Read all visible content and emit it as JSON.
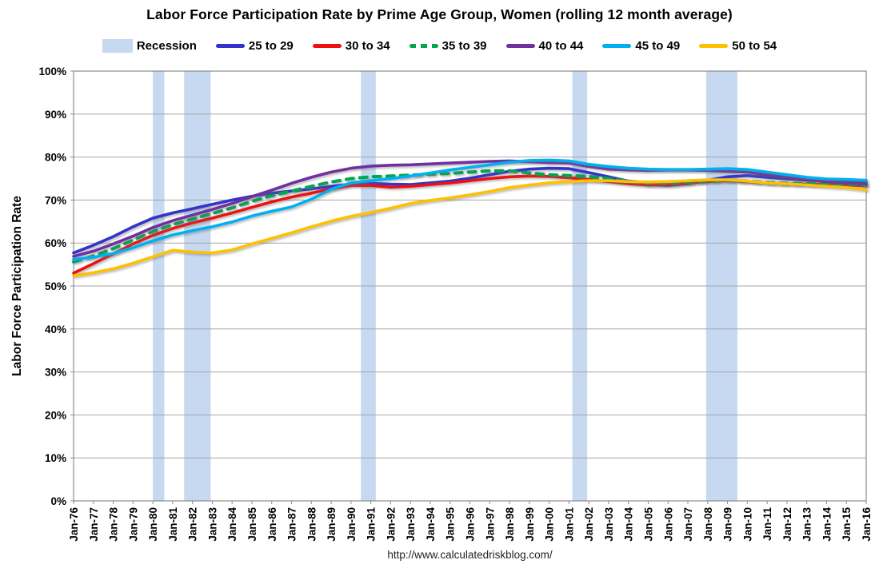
{
  "footer": {
    "url": "http://www.calculatedriskblog.com/"
  },
  "chart_data": {
    "type": "line",
    "title": "Labor Force Participation Rate by Prime Age Group, Women (rolling 12 month average)",
    "xlabel": "",
    "ylabel": "Labor Force Participation Rate",
    "ylim": [
      0,
      100
    ],
    "grid": "horizontal",
    "legend_position": "top",
    "y_ticks": [
      "0%",
      "10%",
      "20%",
      "30%",
      "40%",
      "50%",
      "60%",
      "70%",
      "80%",
      "90%",
      "100%"
    ],
    "x_start": 1976,
    "x_step": 1,
    "x_ticks": [
      "Jan-76",
      "Jan-77",
      "Jan-78",
      "Jan-79",
      "Jan-80",
      "Jan-81",
      "Jan-82",
      "Jan-83",
      "Jan-84",
      "Jan-85",
      "Jan-86",
      "Jan-87",
      "Jan-88",
      "Jan-89",
      "Jan-90",
      "Jan-91",
      "Jan-92",
      "Jan-93",
      "Jan-94",
      "Jan-95",
      "Jan-96",
      "Jan-97",
      "Jan-98",
      "Jan-99",
      "Jan-00",
      "Jan-01",
      "Jan-02",
      "Jan-03",
      "Jan-04",
      "Jan-05",
      "Jan-06",
      "Jan-07",
      "Jan-08",
      "Jan-09",
      "Jan-10",
      "Jan-11",
      "Jan-12",
      "Jan-13",
      "Jan-14",
      "Jan-15",
      "Jan-16"
    ],
    "recession": {
      "label": "Recession",
      "color": "#c6d9f1",
      "bands": [
        [
          1980.0,
          1980.58
        ],
        [
          1981.58,
          1982.92
        ],
        [
          1990.5,
          1991.25
        ],
        [
          2001.17,
          2001.92
        ],
        [
          2007.92,
          2009.5
        ]
      ]
    },
    "series": [
      {
        "name": "25 to 29",
        "color": "#3333cc",
        "dash": null,
        "values": [
          57.7,
          59.5,
          61.5,
          63.8,
          65.8,
          67.0,
          68.0,
          69.0,
          70.0,
          70.9,
          71.6,
          72.1,
          72.6,
          73.2,
          73.7,
          73.9,
          73.7,
          73.6,
          74.0,
          74.4,
          75.1,
          75.9,
          76.7,
          77.2,
          77.4,
          77.3,
          76.4,
          75.4,
          74.4,
          73.6,
          73.4,
          73.8,
          74.6,
          75.4,
          75.7,
          75.3,
          74.9,
          74.6,
          74.4,
          74.3,
          74.1
        ]
      },
      {
        "name": "30 to 34",
        "color": "#ee1111",
        "dash": null,
        "values": [
          53.0,
          55.2,
          57.5,
          59.8,
          61.8,
          63.4,
          64.7,
          65.8,
          67.0,
          68.3,
          69.6,
          70.7,
          71.6,
          72.6,
          73.4,
          73.4,
          73.0,
          73.2,
          73.6,
          74.0,
          74.5,
          75.0,
          75.4,
          75.6,
          75.5,
          75.2,
          74.8,
          74.3,
          73.8,
          73.5,
          73.6,
          74.0,
          74.3,
          74.5,
          74.3,
          74.0,
          73.8,
          73.7,
          73.6,
          73.5,
          73.3
        ]
      },
      {
        "name": "35 to 39",
        "color": "#00a651",
        "dash": "9 8",
        "values": [
          55.6,
          57.0,
          58.7,
          60.7,
          62.7,
          64.3,
          65.6,
          66.9,
          68.2,
          69.7,
          71.0,
          72.1,
          73.2,
          74.2,
          75.0,
          75.4,
          75.6,
          75.8,
          76.0,
          76.2,
          76.5,
          76.8,
          76.8,
          76.3,
          75.9,
          75.7,
          75.5,
          75.0,
          74.4,
          74.0,
          74.0,
          74.2,
          74.4,
          74.6,
          74.4,
          74.1,
          73.9,
          73.8,
          73.8,
          73.7,
          73.5
        ]
      },
      {
        "name": "40 to 44",
        "color": "#7030a0",
        "dash": null,
        "values": [
          56.9,
          58.1,
          59.8,
          61.6,
          63.6,
          65.2,
          66.5,
          67.8,
          69.2,
          70.8,
          72.3,
          73.9,
          75.3,
          76.5,
          77.4,
          77.9,
          78.1,
          78.2,
          78.4,
          78.6,
          78.8,
          79.0,
          79.1,
          78.9,
          78.7,
          78.6,
          77.8,
          77.2,
          77.0,
          76.9,
          77.0,
          77.0,
          76.9,
          76.7,
          76.5,
          75.9,
          75.3,
          74.7,
          74.3,
          74.0,
          73.8
        ]
      },
      {
        "name": "45 to 49",
        "color": "#00b0f0",
        "dash": null,
        "values": [
          56.2,
          56.7,
          57.6,
          58.9,
          60.5,
          61.9,
          62.9,
          63.8,
          64.9,
          66.3,
          67.4,
          68.4,
          70.2,
          72.5,
          74.0,
          74.5,
          75.0,
          75.6,
          76.3,
          77.0,
          77.6,
          78.2,
          78.8,
          79.2,
          79.3,
          79.1,
          78.3,
          77.8,
          77.4,
          77.2,
          77.1,
          77.1,
          77.2,
          77.3,
          77.1,
          76.5,
          75.9,
          75.3,
          74.9,
          74.8,
          74.6
        ]
      },
      {
        "name": "50 to 54",
        "color": "#ffc000",
        "dash": null,
        "values": [
          52.4,
          53.1,
          54.0,
          55.3,
          56.8,
          58.3,
          57.9,
          57.7,
          58.4,
          59.8,
          61.1,
          62.4,
          63.8,
          65.1,
          66.2,
          67.1,
          68.1,
          69.2,
          69.9,
          70.5,
          71.2,
          72.0,
          72.9,
          73.5,
          74.0,
          74.3,
          74.5,
          74.5,
          74.3,
          74.2,
          74.3,
          74.5,
          74.7,
          74.7,
          74.4,
          74.0,
          73.8,
          73.5,
          73.2,
          72.9,
          72.4
        ]
      }
    ]
  }
}
